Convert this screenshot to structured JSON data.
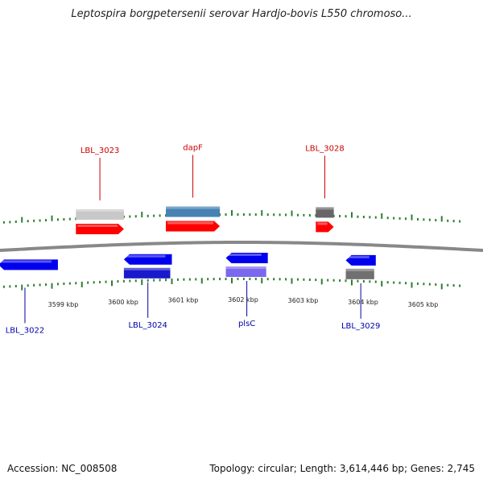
{
  "title": "Leptospira borgpetersenii serovar Hardjo-bovis L550 chromoso...",
  "footer": {
    "accession": "Accession: NC_008508",
    "summary": "Topology: circular; Length: 3,614,446 bp; Genes: 2,745"
  },
  "colors": {
    "forward_gene": "#ff0000",
    "reverse_gene": "#0000ee",
    "forward_label": "#cc0000",
    "reverse_label": "#0000aa",
    "backbone": "#888888",
    "ticks": "#2e7d32"
  },
  "scale": {
    "labels": [
      {
        "kbp": 3599,
        "text": "3599 kbp"
      },
      {
        "kbp": 3600,
        "text": "3600 kbp"
      },
      {
        "kbp": 3601,
        "text": "3601 kbp"
      },
      {
        "kbp": 3602,
        "text": "3602 kbp"
      },
      {
        "kbp": 3603,
        "text": "3603 kbp"
      },
      {
        "kbp": 3604,
        "text": "3604 kbp"
      },
      {
        "kbp": 3605,
        "text": "3605 kbp"
      }
    ]
  },
  "genes": [
    {
      "label": "LBL_3022",
      "strand": "-",
      "start_kbp": 3598.0,
      "end_kbp": 3599.1,
      "feature_color": "",
      "labeled": true
    },
    {
      "label": "LBL_3023",
      "strand": "+",
      "start_kbp": 3599.4,
      "end_kbp": 3600.2,
      "feature_color": "#c8c8c8",
      "labeled": true
    },
    {
      "label": "LBL_3024",
      "strand": "-",
      "start_kbp": 3600.2,
      "end_kbp": 3601.0,
      "feature_color": "#1a1acc",
      "labeled": true
    },
    {
      "label": "dapF",
      "strand": "+",
      "start_kbp": 3600.9,
      "end_kbp": 3601.8,
      "feature_color": "#4682b4",
      "labeled": true
    },
    {
      "label": "plsC",
      "strand": "-",
      "start_kbp": 3601.9,
      "end_kbp": 3602.6,
      "feature_color": "#7b68ee",
      "labeled": true
    },
    {
      "label": "LBL_3028",
      "strand": "+",
      "start_kbp": 3603.4,
      "end_kbp": 3603.7,
      "feature_color": "#666666",
      "labeled": true
    },
    {
      "label": "LBL_3029",
      "strand": "-",
      "start_kbp": 3603.9,
      "end_kbp": 3604.4,
      "feature_color": "#707070",
      "labeled": true
    }
  ]
}
